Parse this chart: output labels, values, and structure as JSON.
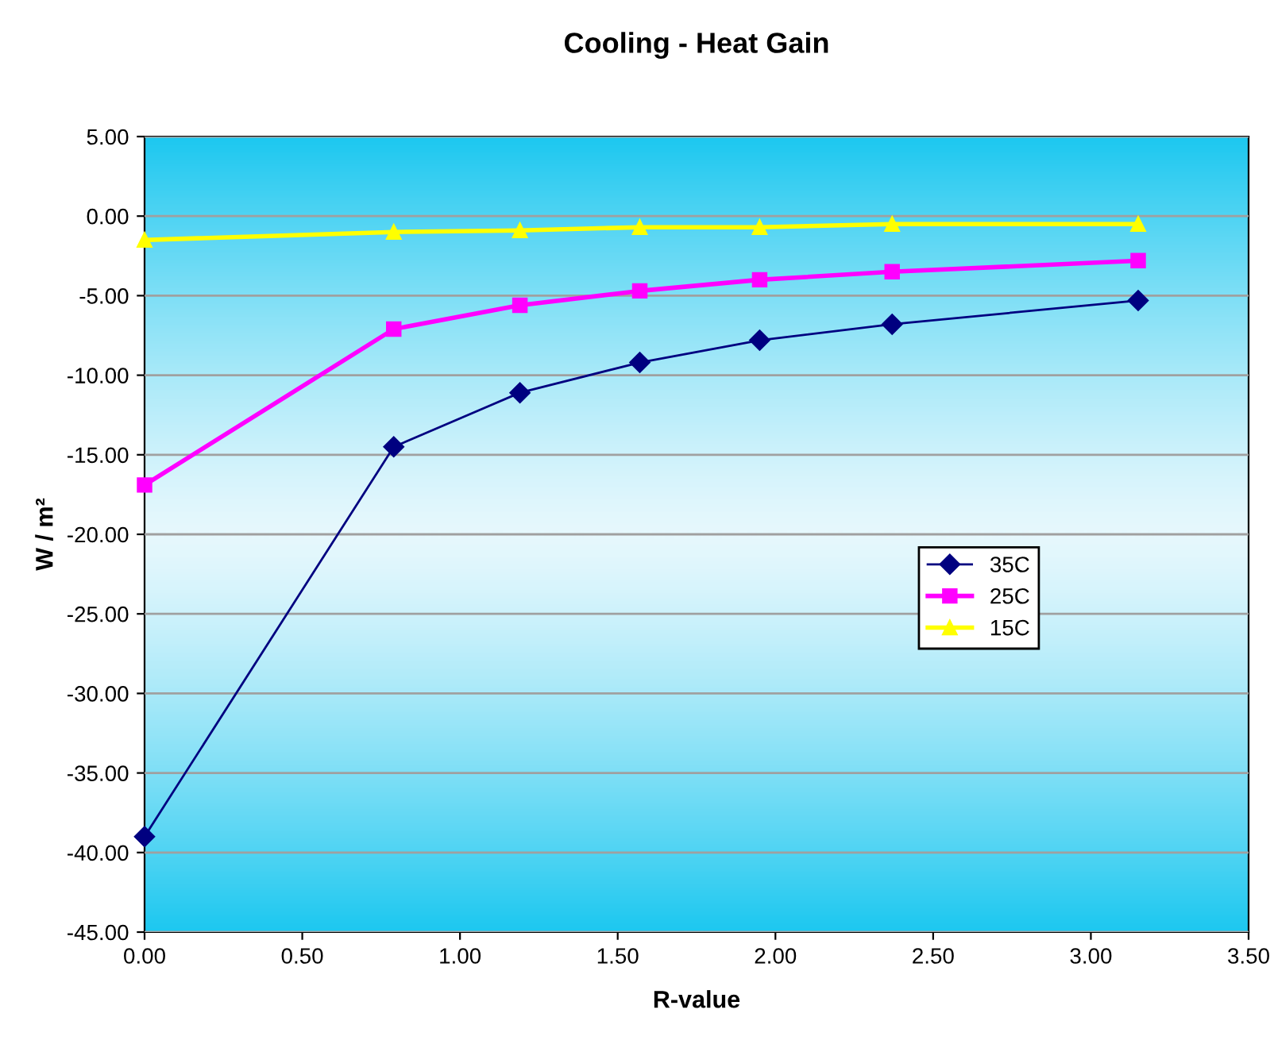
{
  "chart_data": {
    "type": "line",
    "title": "Cooling - Heat Gain",
    "xlabel": "R-value",
    "ylabel": "W / m²",
    "xlim": [
      0,
      3.5
    ],
    "ylim": [
      -45,
      5
    ],
    "xticks": [
      {
        "value": 0,
        "label": "0.00"
      },
      {
        "value": 0.5,
        "label": "0.50"
      },
      {
        "value": 1,
        "label": "1.00"
      },
      {
        "value": 1.5,
        "label": "1.50"
      },
      {
        "value": 2,
        "label": "2.00"
      },
      {
        "value": 2.5,
        "label": "2.50"
      },
      {
        "value": 3,
        "label": "3.00"
      },
      {
        "value": 3.5,
        "label": "3.50"
      }
    ],
    "yticks": [
      {
        "value": 5,
        "label": "5.00"
      },
      {
        "value": 0,
        "label": "0.00"
      },
      {
        "value": -5,
        "label": "-5.00"
      },
      {
        "value": -10,
        "label": "-10.00"
      },
      {
        "value": -15,
        "label": "-15.00"
      },
      {
        "value": -20,
        "label": "-20.00"
      },
      {
        "value": -25,
        "label": "-25.00"
      },
      {
        "value": -30,
        "label": "-30.00"
      },
      {
        "value": -35,
        "label": "-35.00"
      },
      {
        "value": -40,
        "label": "-40.00"
      },
      {
        "value": -45,
        "label": "-45.00"
      }
    ],
    "grid": "y",
    "legend": "right",
    "x": [
      0,
      0.79,
      1.19,
      1.57,
      1.95,
      2.37,
      3.15
    ],
    "series": [
      {
        "name": "35C",
        "color": "#000080",
        "marker": "diamond",
        "values": [
          -39.0,
          -14.5,
          -11.1,
          -9.2,
          -7.8,
          -6.8,
          -5.3
        ]
      },
      {
        "name": "25C",
        "color": "#ff00ff",
        "marker": "square",
        "values": [
          -16.9,
          -7.1,
          -5.6,
          -4.7,
          -4.0,
          -3.5,
          -2.8
        ]
      },
      {
        "name": "15C",
        "color": "#ffff00",
        "marker": "triangle",
        "values": [
          -1.5,
          -1.0,
          -0.9,
          -0.7,
          -0.7,
          -0.5,
          -0.5
        ]
      }
    ]
  }
}
